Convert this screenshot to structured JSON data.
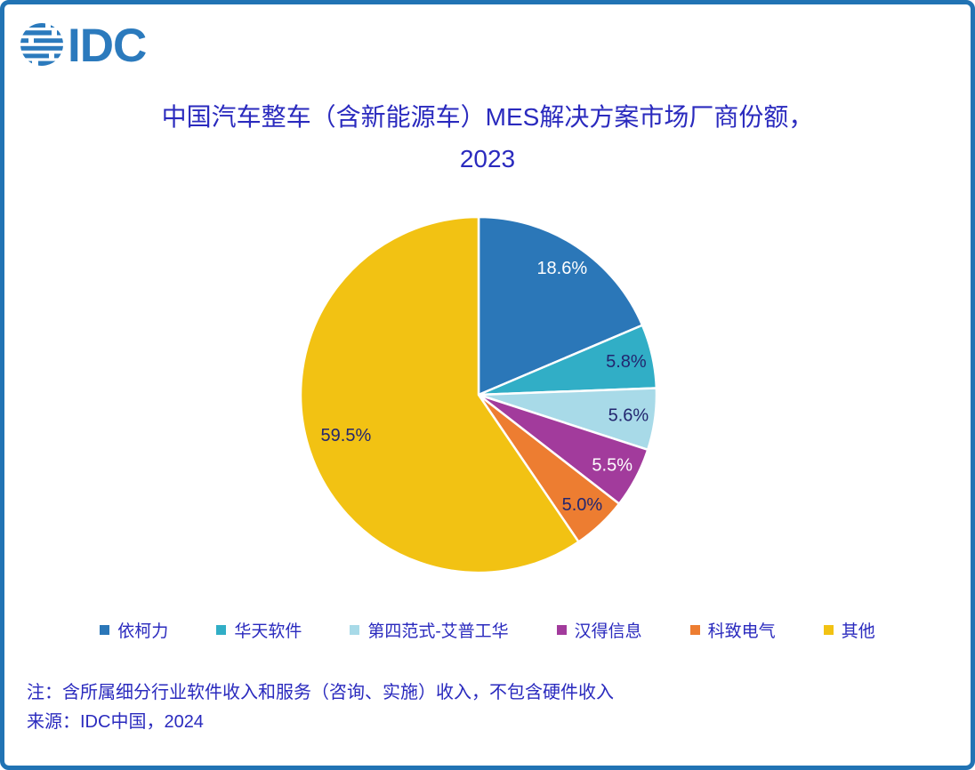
{
  "brand": {
    "logo_text": "IDC"
  },
  "title": {
    "line1": "中国汽车整车（含新能源车）MES解决方案市场厂商份额，",
    "line2": "2023"
  },
  "chart_data": {
    "type": "pie",
    "title": "中国汽车整车（含新能源车）MES解决方案市场厂商份额，2023",
    "unit": "%",
    "legend_position": "bottom",
    "start_angle_deg": 0,
    "direction": "clockwise",
    "slices": [
      {
        "label": "依柯力",
        "value": 18.6,
        "pct_label": "18.6%",
        "color": "#2B77B8",
        "label_color": "#FFFFFF"
      },
      {
        "label": "华天软件",
        "value": 5.8,
        "pct_label": "5.8%",
        "color": "#31AEC6",
        "label_color": "#23266F"
      },
      {
        "label": "第四范式-艾普工华",
        "value": 5.6,
        "pct_label": "5.6%",
        "color": "#A8DAE8",
        "label_color": "#23266F"
      },
      {
        "label": "汉得信息",
        "value": 5.5,
        "pct_label": "5.5%",
        "color": "#A23B9C",
        "label_color": "#FFFFFF"
      },
      {
        "label": "科致电气",
        "value": 5.0,
        "pct_label": "5.0%",
        "color": "#ED7D31",
        "label_color": "#23266F"
      },
      {
        "label": "其他",
        "value": 59.5,
        "pct_label": "59.5%",
        "color": "#F2C213",
        "label_color": "#23266F"
      }
    ]
  },
  "notes": {
    "note1": "注：含所属细分行业软件收入和服务（咨询、实施）收入，不包含硬件收入",
    "source": "来源：IDC中国，2024"
  },
  "colors": {
    "frame_border": "#2173B4",
    "logo_blue": "#2B7ABD",
    "heading_text": "#2A2ABE",
    "data_label_navy": "#23266F",
    "data_label_light": "#FFFFFF",
    "slice_divider": "#FFFFFF"
  }
}
